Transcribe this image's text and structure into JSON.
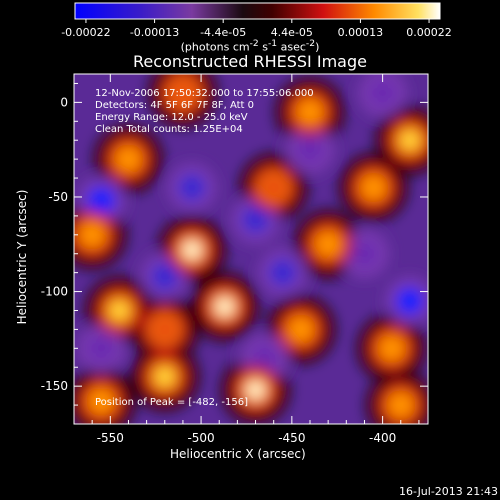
{
  "chart_data": {
    "type": "heatmap",
    "title": "Reconstructed RHESSI Image",
    "xlabel": "Heliocentric X (arcsec)",
    "ylabel": "Heliocentric Y (arcsec)",
    "x_ticks": [
      -550,
      -500,
      -450,
      -400
    ],
    "y_ticks": [
      0,
      -50,
      -100,
      -150
    ],
    "xlim": [
      -570,
      -375
    ],
    "ylim": [
      -170,
      15
    ],
    "colorbar": {
      "ticks": [
        "-0.00022",
        "-0.00013",
        "-4.4e-05",
        "4.4e-05",
        "0.00013",
        "0.00022"
      ],
      "range": [
        -0.00022,
        0.00022
      ],
      "units_line1": "(photons cm",
      "units_sup1": "-2",
      "units_mid": " s",
      "units_sup2": "-1",
      "units_end": " asec",
      "units_sup3": "-2",
      "units_close": ")"
    },
    "annotations": {
      "time": "12-Nov-2006 17:50:32.000 to 17:55:06.000",
      "detectors": "Detectors: 4F 5F 6F 7F 8F, Att 0",
      "energy": "Energy Range: 12.0 - 25.0 keV",
      "clean": "Clean    Total counts: 1.25E+04",
      "peak": "Position of Peak = [-482, -156]"
    },
    "hotspots": [
      {
        "x": -505,
        "y": -78,
        "v": 1.0
      },
      {
        "x": -487,
        "y": -108,
        "v": 0.95
      },
      {
        "x": -520,
        "y": -145,
        "v": 0.9
      },
      {
        "x": -470,
        "y": -152,
        "v": 0.95
      },
      {
        "x": -445,
        "y": -120,
        "v": 0.85
      },
      {
        "x": -430,
        "y": -75,
        "v": 0.8
      },
      {
        "x": -405,
        "y": -45,
        "v": 0.85
      },
      {
        "x": -385,
        "y": -20,
        "v": 0.9
      },
      {
        "x": -440,
        "y": -5,
        "v": 0.85
      },
      {
        "x": -540,
        "y": -30,
        "v": 0.8
      },
      {
        "x": -560,
        "y": -70,
        "v": 0.85
      },
      {
        "x": -545,
        "y": -110,
        "v": 0.9
      },
      {
        "x": -520,
        "y": -120,
        "v": 0.75
      },
      {
        "x": -395,
        "y": -130,
        "v": 0.8
      },
      {
        "x": -460,
        "y": -45,
        "v": 0.7
      },
      {
        "x": -510,
        "y": 5,
        "v": 0.7
      },
      {
        "x": -390,
        "y": -160,
        "v": 0.8
      },
      {
        "x": -555,
        "y": -158,
        "v": 0.85
      }
    ],
    "coldspots": [
      {
        "x": -555,
        "y": -52,
        "v": -0.9
      },
      {
        "x": -505,
        "y": -45,
        "v": -0.85
      },
      {
        "x": -470,
        "y": -62,
        "v": -0.8
      },
      {
        "x": -440,
        "y": -25,
        "v": -0.7
      },
      {
        "x": -385,
        "y": -105,
        "v": -0.9
      },
      {
        "x": -410,
        "y": -80,
        "v": -0.7
      },
      {
        "x": -520,
        "y": -92,
        "v": -0.75
      },
      {
        "x": -555,
        "y": -130,
        "v": -0.7
      },
      {
        "x": -455,
        "y": -90,
        "v": -0.8
      },
      {
        "x": -400,
        "y": 5,
        "v": -0.6
      },
      {
        "x": -465,
        "y": -135,
        "v": -0.55
      }
    ]
  },
  "footer": {
    "timestamp": "16-Jul-2013 21:43"
  }
}
